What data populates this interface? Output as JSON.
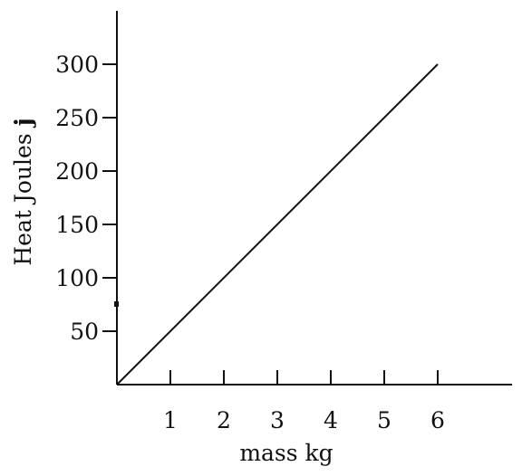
{
  "chart_data": {
    "type": "line",
    "title": "",
    "xlabel": "mass  kg",
    "ylabel": "Heat  Joules ",
    "ylabel_unit": "j",
    "x_ticks": [
      "1",
      "2",
      "3",
      "4",
      "5",
      "6"
    ],
    "y_ticks": [
      "50",
      "100",
      "150",
      "200",
      "250",
      "300"
    ],
    "xlim": [
      0,
      7.3
    ],
    "ylim": [
      0,
      350
    ],
    "grid": false,
    "series": [
      {
        "x": [
          0,
          6
        ],
        "y": [
          0,
          300
        ]
      }
    ]
  }
}
